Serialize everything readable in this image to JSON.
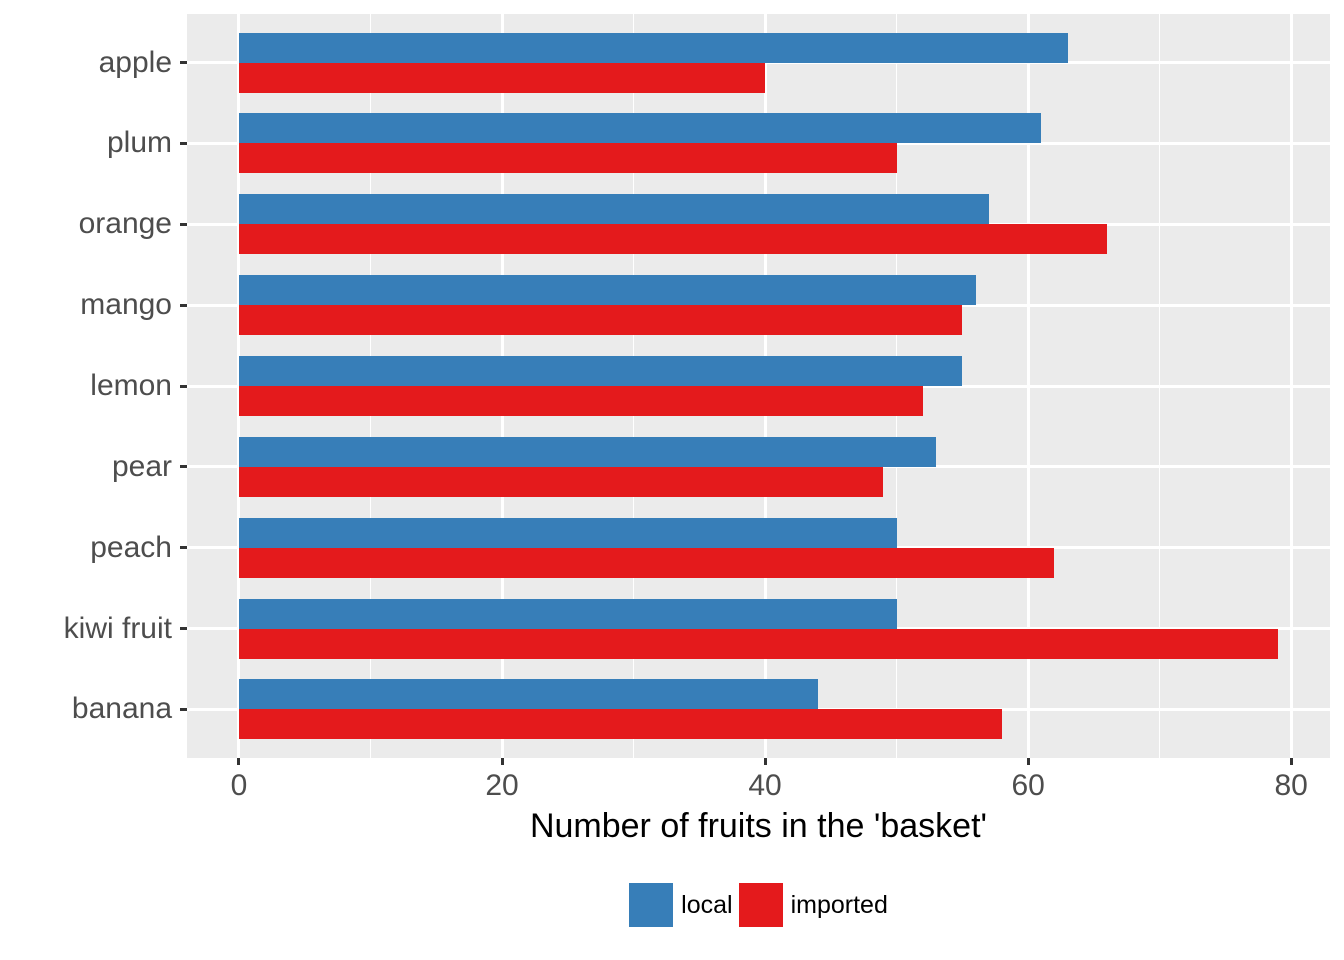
{
  "chart_data": {
    "type": "bar",
    "orientation": "horizontal",
    "title": "",
    "xlabel": "Number of fruits in the 'basket'",
    "ylabel": "",
    "categories": [
      "apple",
      "plum",
      "orange",
      "mango",
      "lemon",
      "pear",
      "peach",
      "kiwi fruit",
      "banana"
    ],
    "series": [
      {
        "name": "local",
        "color": "#377EB8",
        "values": [
          63,
          61,
          57,
          56,
          55,
          53,
          50,
          50,
          44
        ]
      },
      {
        "name": "imported",
        "color": "#E41A1C",
        "values": [
          40,
          50,
          66,
          55,
          52,
          49,
          62,
          79,
          58
        ]
      }
    ],
    "x_ticks": [
      0,
      20,
      40,
      60,
      80
    ],
    "x_minor_ticks": [
      10,
      30,
      50,
      70
    ],
    "xlim": [
      -3.95,
      82.95
    ],
    "grid": "white major and minor gridlines on gray panel",
    "legend_position": "bottom-center"
  },
  "colors": {
    "panel_background": "#EBEBEB",
    "gridline": "#FFFFFF",
    "axis_text": "#4D4D4D",
    "tick_mark": "#333333",
    "title_text": "#000000"
  }
}
